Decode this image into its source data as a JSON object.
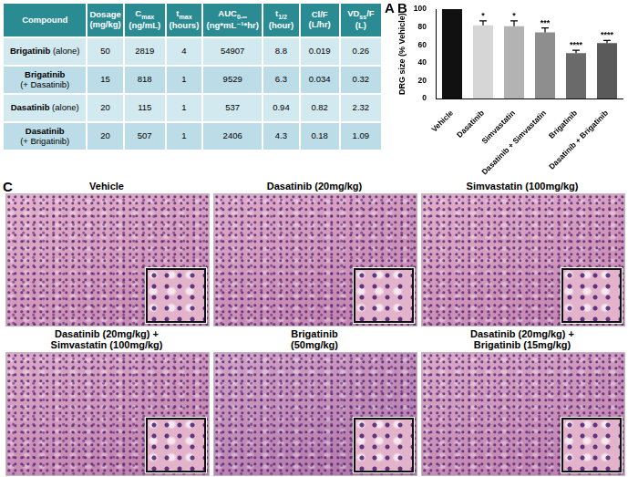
{
  "table": {
    "label": "A",
    "columns": [
      {
        "text": "Compound"
      },
      {
        "text": "Dosage",
        "unit": "(mg/kg)"
      },
      {
        "text": "C",
        "sub": "max",
        "unit": "(ng/mL)"
      },
      {
        "text": "t",
        "sub": "max",
        "unit": "(hours)"
      },
      {
        "text": "AUC",
        "sub": "0-∞",
        "unit": "(ng*mL⁻¹*hr)"
      },
      {
        "text": "t",
        "sub": "1/2",
        "unit": "(hour)"
      },
      {
        "text": "Cl/F",
        "unit": "(L/hr)"
      },
      {
        "text": "VD",
        "sub": "ss",
        "tail": "/F",
        "unit": "(L)"
      }
    ],
    "rows": [
      {
        "compound": [
          [
            "Brigatinib",
            "(alone)"
          ]
        ],
        "cells": [
          "50",
          "2819",
          "4",
          "54907",
          "8.8",
          "0.019",
          "0.26"
        ]
      },
      {
        "compound": [
          [
            "Brigatinib"
          ],
          [
            "(+ Dasatinib)"
          ]
        ],
        "cells": [
          "15",
          "818",
          "1",
          "9529",
          "6.3",
          "0.034",
          "0.32"
        ]
      },
      {
        "compound": [
          [
            "Dasatinib",
            "(alone)"
          ]
        ],
        "cells": [
          "20",
          "115",
          "1",
          "537",
          "0.94",
          "0.82",
          "2.32"
        ]
      },
      {
        "compound": [
          [
            "Dasatinib"
          ],
          [
            "(+ Brigatinib)"
          ]
        ],
        "cells": [
          "20",
          "507",
          "1",
          "2406",
          "4.3",
          "0.18",
          "1.09"
        ]
      }
    ]
  },
  "chart_data": {
    "label": "B",
    "type": "bar",
    "y_label": "DRG size (% Vehicle)",
    "categories": [
      "Vehicle",
      "Dasatinib",
      "Simvastatin",
      "Dasatinib + Simvastatin",
      "Brigatinib",
      "Dasatinib + Brigatinib"
    ],
    "values": [
      100,
      82,
      81,
      74,
      51,
      62
    ],
    "errors": [
      null,
      5,
      6,
      5,
      3,
      3
    ],
    "significance": [
      null,
      "*",
      "*",
      "***",
      "****",
      "****"
    ],
    "colors": [
      "#111111",
      "#d6d6d6",
      "#b3b3b3",
      "#8e8e8e",
      "#6a6a6a",
      "#5a5a5a"
    ],
    "ylim": [
      0,
      100
    ],
    "yticks": [
      0,
      20,
      40,
      60,
      80,
      100
    ],
    "grid": false
  },
  "images": {
    "label": "C",
    "panels": [
      {
        "title": [
          "Vehicle"
        ]
      },
      {
        "title": [
          "Dasatinib (20mg/kg)"
        ]
      },
      {
        "title": [
          "Simvastatin (100mg/kg)"
        ]
      },
      {
        "title": [
          "Dasatinib (20mg/kg) +",
          "Simvastatin (100mg/kg)"
        ]
      },
      {
        "title": [
          "Brigatinib",
          "(50mg/kg)"
        ]
      },
      {
        "title": [
          "Dasatinib (20mg/kg) +",
          "Brigatinib (15mg/kg)"
        ]
      }
    ]
  }
}
